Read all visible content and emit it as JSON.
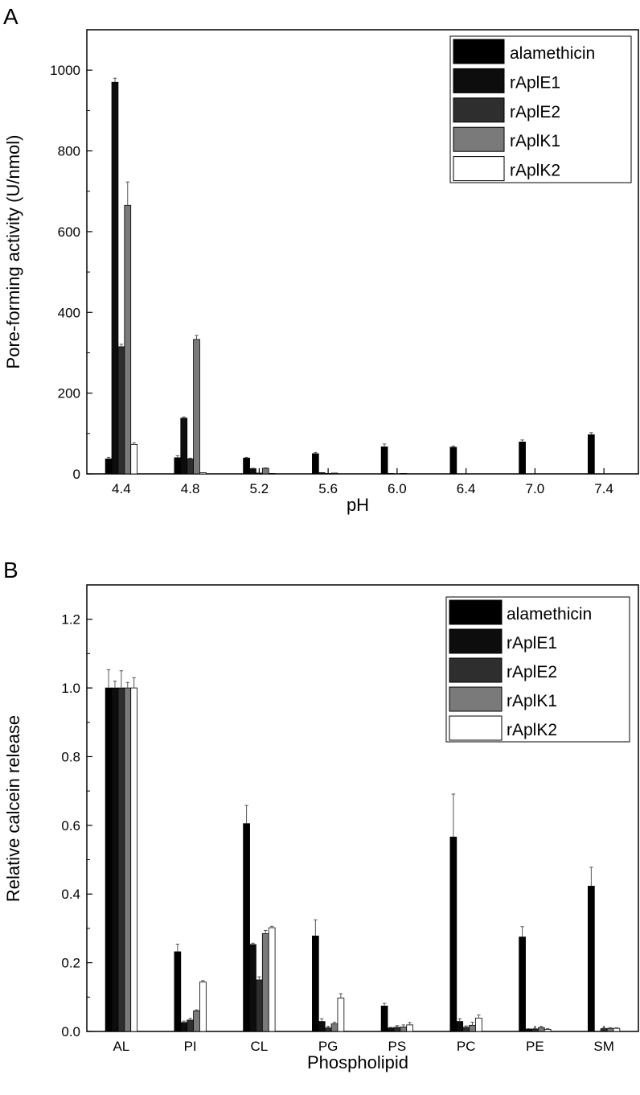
{
  "chart_data": [
    {
      "panel": "A",
      "type": "bar",
      "title": "",
      "xlabel": "pH",
      "ylabel": "Pore-forming activity (U/nmol)",
      "ylim": [
        0,
        1100
      ],
      "yticks": [
        0,
        200,
        400,
        600,
        800,
        1000
      ],
      "ytick_labels": [
        "0",
        "200",
        "400",
        "600",
        "800",
        "1000"
      ],
      "categories": [
        "4.4",
        "4.8",
        "5.2",
        "5.6",
        "6.0",
        "6.4",
        "7.0",
        "7.4"
      ],
      "legend_position": "top-right",
      "series": [
        {
          "name": "alamethicin",
          "color": "#000000",
          "values": [
            37,
            40,
            39,
            50,
            67,
            66,
            79,
            97
          ],
          "errors": [
            4,
            5,
            2,
            3,
            7,
            3,
            5,
            5
          ]
        },
        {
          "name": "rAplE1",
          "color": "#0d0d0d",
          "values": [
            970,
            138,
            13,
            3,
            1,
            0,
            0,
            0
          ],
          "errors": [
            10,
            3,
            1,
            0,
            0,
            0,
            0,
            0
          ]
        },
        {
          "name": "rAplE2",
          "color": "#2e2e2e",
          "values": [
            315,
            37,
            2,
            1,
            0,
            0,
            0,
            0
          ],
          "errors": [
            6,
            2,
            0,
            0,
            0,
            0,
            0,
            0
          ]
        },
        {
          "name": "rAplK1",
          "color": "#7a7a7a",
          "values": [
            665,
            333,
            14,
            2,
            1,
            0,
            0,
            0
          ],
          "errors": [
            58,
            10,
            1,
            0,
            0,
            0,
            0,
            0
          ]
        },
        {
          "name": "rAplK2",
          "color": "#ffffff",
          "values": [
            73,
            3,
            1,
            0,
            0,
            0,
            0,
            0
          ],
          "errors": [
            4,
            0,
            0,
            0,
            0,
            0,
            0,
            0
          ]
        }
      ]
    },
    {
      "panel": "B",
      "type": "bar",
      "title": "",
      "xlabel": "Phospholipid",
      "ylabel": "Relative calcein release",
      "ylim": [
        0,
        1.3
      ],
      "yticks": [
        0,
        0.2,
        0.4,
        0.6,
        0.8,
        1.0,
        1.2
      ],
      "ytick_labels": [
        "0.0",
        "0.2",
        "0.4",
        "0.6",
        "0.8",
        "1.0",
        "1.2"
      ],
      "categories": [
        "AL",
        "PI",
        "CL",
        "PG",
        "PS",
        "PC",
        "PE",
        "SM"
      ],
      "legend_position": "top-right",
      "series": [
        {
          "name": "alamethicin",
          "color": "#000000",
          "values": [
            1.0,
            0.232,
            0.605,
            0.278,
            0.074,
            0.566,
            0.275,
            0.423
          ],
          "errors": [
            0.053,
            0.022,
            0.053,
            0.047,
            0.008,
            0.125,
            0.03,
            0.055
          ]
        },
        {
          "name": "rAplE1",
          "color": "#0d0d0d",
          "values": [
            1.0,
            0.026,
            0.253,
            0.029,
            0.01,
            0.029,
            0.007,
            0.0
          ],
          "errors": [
            0.02,
            0.004,
            0.004,
            0.008,
            0.002,
            0.008,
            0.001,
            0.0
          ]
        },
        {
          "name": "rAplE2",
          "color": "#2e2e2e",
          "values": [
            1.0,
            0.033,
            0.15,
            0.01,
            0.012,
            0.012,
            0.007,
            0.008
          ],
          "errors": [
            0.05,
            0.005,
            0.009,
            0.004,
            0.005,
            0.004,
            0.002,
            0.002
          ]
        },
        {
          "name": "rAplK1",
          "color": "#7a7a7a",
          "values": [
            1.0,
            0.06,
            0.285,
            0.022,
            0.013,
            0.018,
            0.011,
            0.009
          ],
          "errors": [
            0.016,
            0.003,
            0.009,
            0.005,
            0.006,
            0.009,
            0.004,
            0.002
          ]
        },
        {
          "name": "rAplK2",
          "color": "#ffffff",
          "values": [
            1.0,
            0.144,
            0.302,
            0.097,
            0.019,
            0.039,
            0.006,
            0.009
          ],
          "errors": [
            0.03,
            0.004,
            0.004,
            0.013,
            0.007,
            0.009,
            0.002,
            0.002
          ]
        }
      ]
    }
  ]
}
